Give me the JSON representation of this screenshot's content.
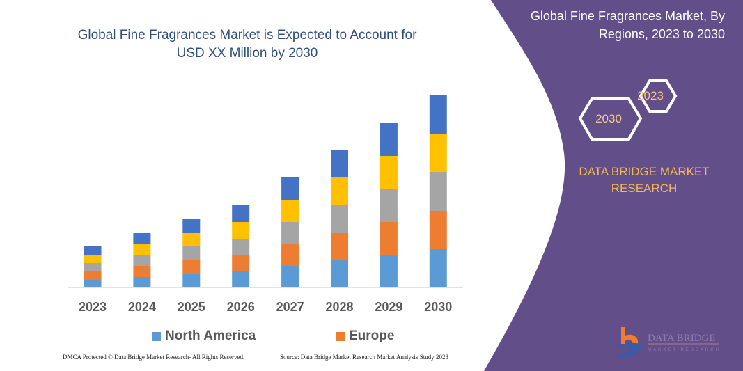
{
  "title": "Global Fine Fragrances Market is Expected to Account for USD XX Million by 2030",
  "side_panel": {
    "title": "Global Fine Fragrances Market, By Regions, 2023 to 2030",
    "hex_start": "2023",
    "hex_end": "2030",
    "brand": "DATA BRIDGE MARKET RESEARCH",
    "logo_text": "DATA BRIDGE MARKET RESEARCH",
    "bg_color": "#624E88"
  },
  "chart_data": {
    "type": "bar",
    "stacked": true,
    "title": "Global Fine Fragrances Market is Expected to Account for USD XX Million by 2030",
    "categories": [
      "2023",
      "2024",
      "2025",
      "2026",
      "2027",
      "2028",
      "2029",
      "2030"
    ],
    "series": [
      {
        "name": "North America",
        "color": "#5B9BD5",
        "values": [
          11,
          15,
          19,
          23,
          31,
          39,
          47,
          55
        ]
      },
      {
        "name": "Europe",
        "color": "#ED7D31",
        "values": [
          12,
          16,
          20,
          24,
          32,
          39,
          47,
          55
        ]
      },
      {
        "color": "#A5A5A5",
        "values": [
          12,
          16,
          20,
          23,
          31,
          40,
          48,
          56
        ]
      },
      {
        "color": "#FFC000",
        "values": [
          12,
          16,
          19,
          24,
          32,
          40,
          47,
          55
        ]
      },
      {
        "color": "#4472C4",
        "values": [
          12,
          15,
          20,
          24,
          32,
          39,
          48,
          55
        ]
      }
    ],
    "xlabel": "",
    "ylabel": "",
    "y_axis_shown": false,
    "grid": false,
    "legend": "bottom"
  },
  "legend": {
    "items": [
      {
        "label": "North America",
        "color": "#5B9BD5"
      },
      {
        "label": "Europe",
        "color": "#ED7D31"
      }
    ]
  },
  "footer": {
    "left": "DMCA Protected © Data Bridge Market Research- All Rights Reserved.",
    "right": "Source: Data Bridge Market Research Market Analysis Study 2023"
  }
}
